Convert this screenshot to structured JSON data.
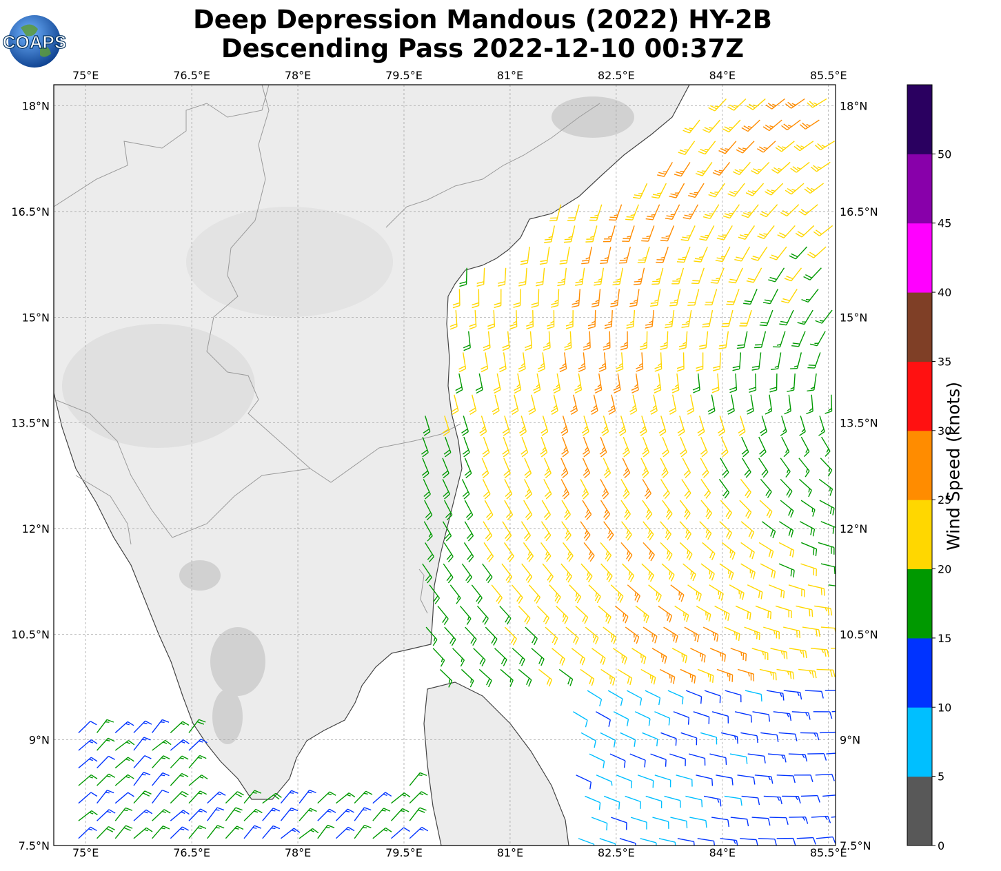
{
  "title": {
    "line1": "Deep Depression Mandous (2022) HY-2B",
    "line2": "Descending Pass 2022-12-10 00:37Z"
  },
  "logo": {
    "text": "COAPS",
    "icon": "globe-icon"
  },
  "map": {
    "lon_range": [
      74.55,
      85.6
    ],
    "lat_range": [
      7.5,
      18.3
    ],
    "lon_ticks": [
      "75°E",
      "76.5°E",
      "78°E",
      "79.5°E",
      "81°E",
      "82.5°E",
      "84°E",
      "85.5°E"
    ],
    "lat_ticks": [
      "18°N",
      "16.5°N",
      "15°N",
      "13.5°N",
      "12°N",
      "10.5°N",
      "9°N",
      "7.5°N"
    ],
    "gridlines": true,
    "land_color": "#ececec",
    "ocean_color": "#ffffff",
    "coast_color": "#444444",
    "border_color": "#9a9a9a"
  },
  "colorbar": {
    "label": "Wind Speed (knots)",
    "ticks": [
      "0",
      "5",
      "10",
      "15",
      "20",
      "25",
      "30",
      "35",
      "40",
      "45",
      "50"
    ],
    "colors": [
      "#585858",
      "#00bfff",
      "#0033ff",
      "#009900",
      "#ffd700",
      "#ff8c00",
      "#ff1111",
      "#7f3f26",
      "#ff00ff",
      "#8800aa",
      "#2a0060"
    ]
  }
}
